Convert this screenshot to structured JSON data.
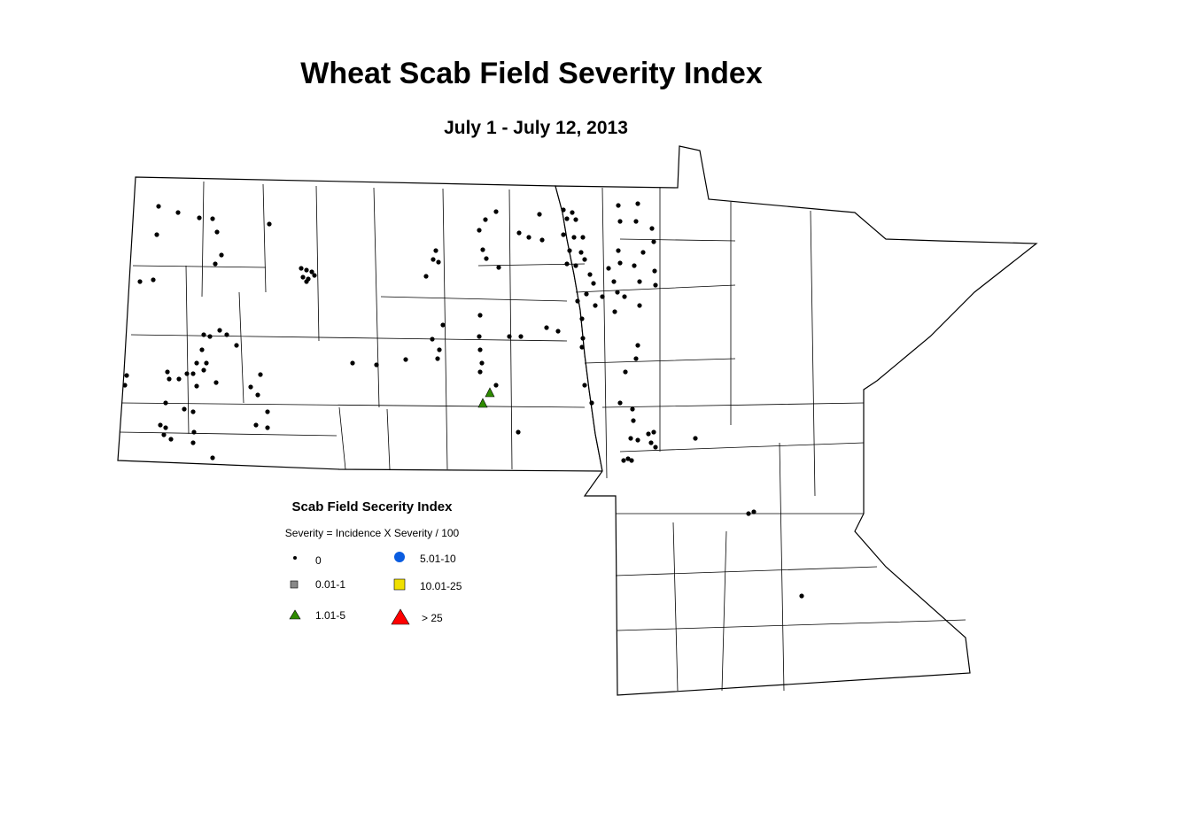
{
  "header": {
    "title": "Wheat Scab Field Severity Index",
    "subtitle": "July 1 - July 12, 2013"
  },
  "legend": {
    "title": "Scab Field Secerity Index",
    "formula": "Severity = Incidence X Severity / 100",
    "items": [
      "0",
      "0.01-1",
      "1.01-5",
      "5.01-10",
      "10.01-25",
      "> 25"
    ]
  }
}
